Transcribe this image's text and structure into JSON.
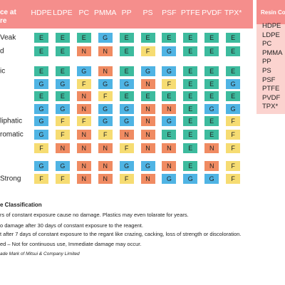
{
  "header": {
    "corner_lines": [
      "ce at",
      "re"
    ],
    "columns": [
      "HDPE",
      "LDPE",
      "PC",
      "PMMA",
      "PP",
      "PS",
      "PSF",
      "PTFE",
      "PVDF",
      "TPX*"
    ]
  },
  "colors": {
    "E": "#3dbb9e",
    "G": "#4fb4e4",
    "F": "#f6dc72",
    "N": "#f08b62"
  },
  "rows": [
    {
      "label": "Veak",
      "cells": [
        "E",
        "E",
        "E",
        "G",
        "E",
        "E",
        "E",
        "E",
        "E",
        "E"
      ]
    },
    {
      "label": "d",
      "cells": [
        "E",
        "E",
        "N",
        "N",
        "E",
        "F",
        "G",
        "E",
        "E",
        "E"
      ]
    },
    {
      "label": "ic",
      "cells": [
        "E",
        "E",
        "G",
        "N",
        "E",
        "G",
        "G",
        "E",
        "E",
        "E"
      ]
    },
    {
      "cells": [
        "G",
        "G",
        "F",
        "G",
        "G",
        "N",
        "F",
        "E",
        "E",
        "G"
      ]
    },
    {
      "cells": [
        "E",
        "E",
        "N",
        "F",
        "E",
        "E",
        "E",
        "E",
        "E",
        "E"
      ]
    },
    {
      "cells": [
        "G",
        "G",
        "N",
        "G",
        "G",
        "N",
        "N",
        "E",
        "G",
        "G"
      ]
    },
    {
      "label": "liphatic",
      "cells": [
        "G",
        "F",
        "F",
        "G",
        "G",
        "N",
        "G",
        "E",
        "E",
        "F"
      ]
    },
    {
      "label": "romatic",
      "cells": [
        "G",
        "F",
        "N",
        "F",
        "N",
        "N",
        "E",
        "E",
        "E",
        "F"
      ]
    },
    {
      "cells": [
        "F",
        "N",
        "N",
        "N",
        "F",
        "N",
        "N",
        "E",
        "N",
        "F"
      ]
    },
    {
      "cells": [
        "G",
        "G",
        "N",
        "N",
        "G",
        "G",
        "N",
        "E",
        "N",
        "F"
      ]
    },
    {
      "label": "Strong",
      "cells": [
        "F",
        "F",
        "N",
        "N",
        "F",
        "N",
        "G",
        "G",
        "G",
        "F"
      ]
    }
  ],
  "legend": {
    "title": "e Classification",
    "lines": [
      "rs of constant exposure cause no damage. Plastics may even tolarate for years.",
      "o damage after 30 days of constant exposure to the reagent.",
      "t after 7 days of constant exposure to the regant like crazing, cacking, loss of strength or discoloration.",
      "ed – Not for continuous use, Immediate damage may occur."
    ],
    "footnote": "ade Mark of Mitsui & Company Limited"
  },
  "side_panel": {
    "title": "Resin Co",
    "items": [
      "HDPE",
      "LDPE",
      "PC",
      "PMMA",
      "PP",
      "PS",
      "PSF",
      "PTFE",
      "PVDF",
      "TPX*"
    ]
  }
}
